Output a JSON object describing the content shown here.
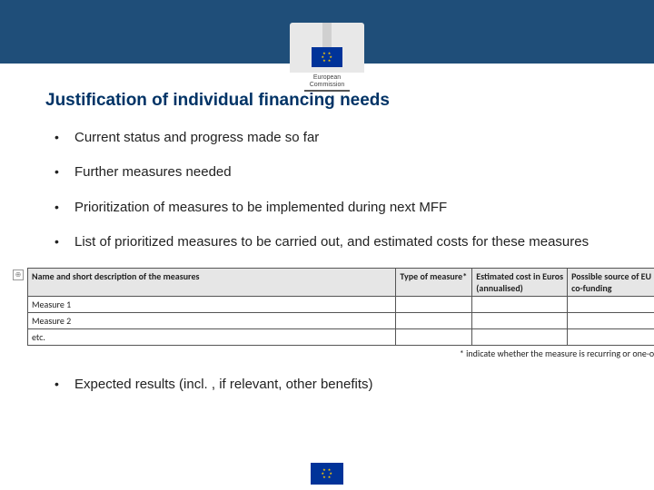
{
  "logo": {
    "text_line1": "European",
    "text_line2": "Commission",
    "stars": "★ ★ ★\n★     ★\n★     ★\n★ ★ ★"
  },
  "title": "Justification of individual financing needs",
  "bullets": {
    "b0": "Current status and progress made so far",
    "b1": "Further measures needed",
    "b2": "Prioritization of measures to be implemented during next MFF",
    "b3": "List of prioritized measures to be carried out, and estimated costs for these measures",
    "b4": "Expected results (incl. , if relevant, other benefits)"
  },
  "table": {
    "headers": {
      "h0": "Name and short description of the measures",
      "h1": "Type of measure*",
      "h2": "Estimated cost in Euros (annualised)",
      "h3": "Possible source of EU co-funding"
    },
    "rows": {
      "r0": "Measure 1",
      "r1": "Measure 2",
      "r2": "etc."
    },
    "footnote": "* indicate whether the measure is recurring or one-off"
  },
  "colors": {
    "header_band": "#1f4e79",
    "title_color": "#003366",
    "flag_bg": "#003399",
    "flag_stars": "#ffcc00",
    "table_header_bg": "#e6e6e6"
  }
}
